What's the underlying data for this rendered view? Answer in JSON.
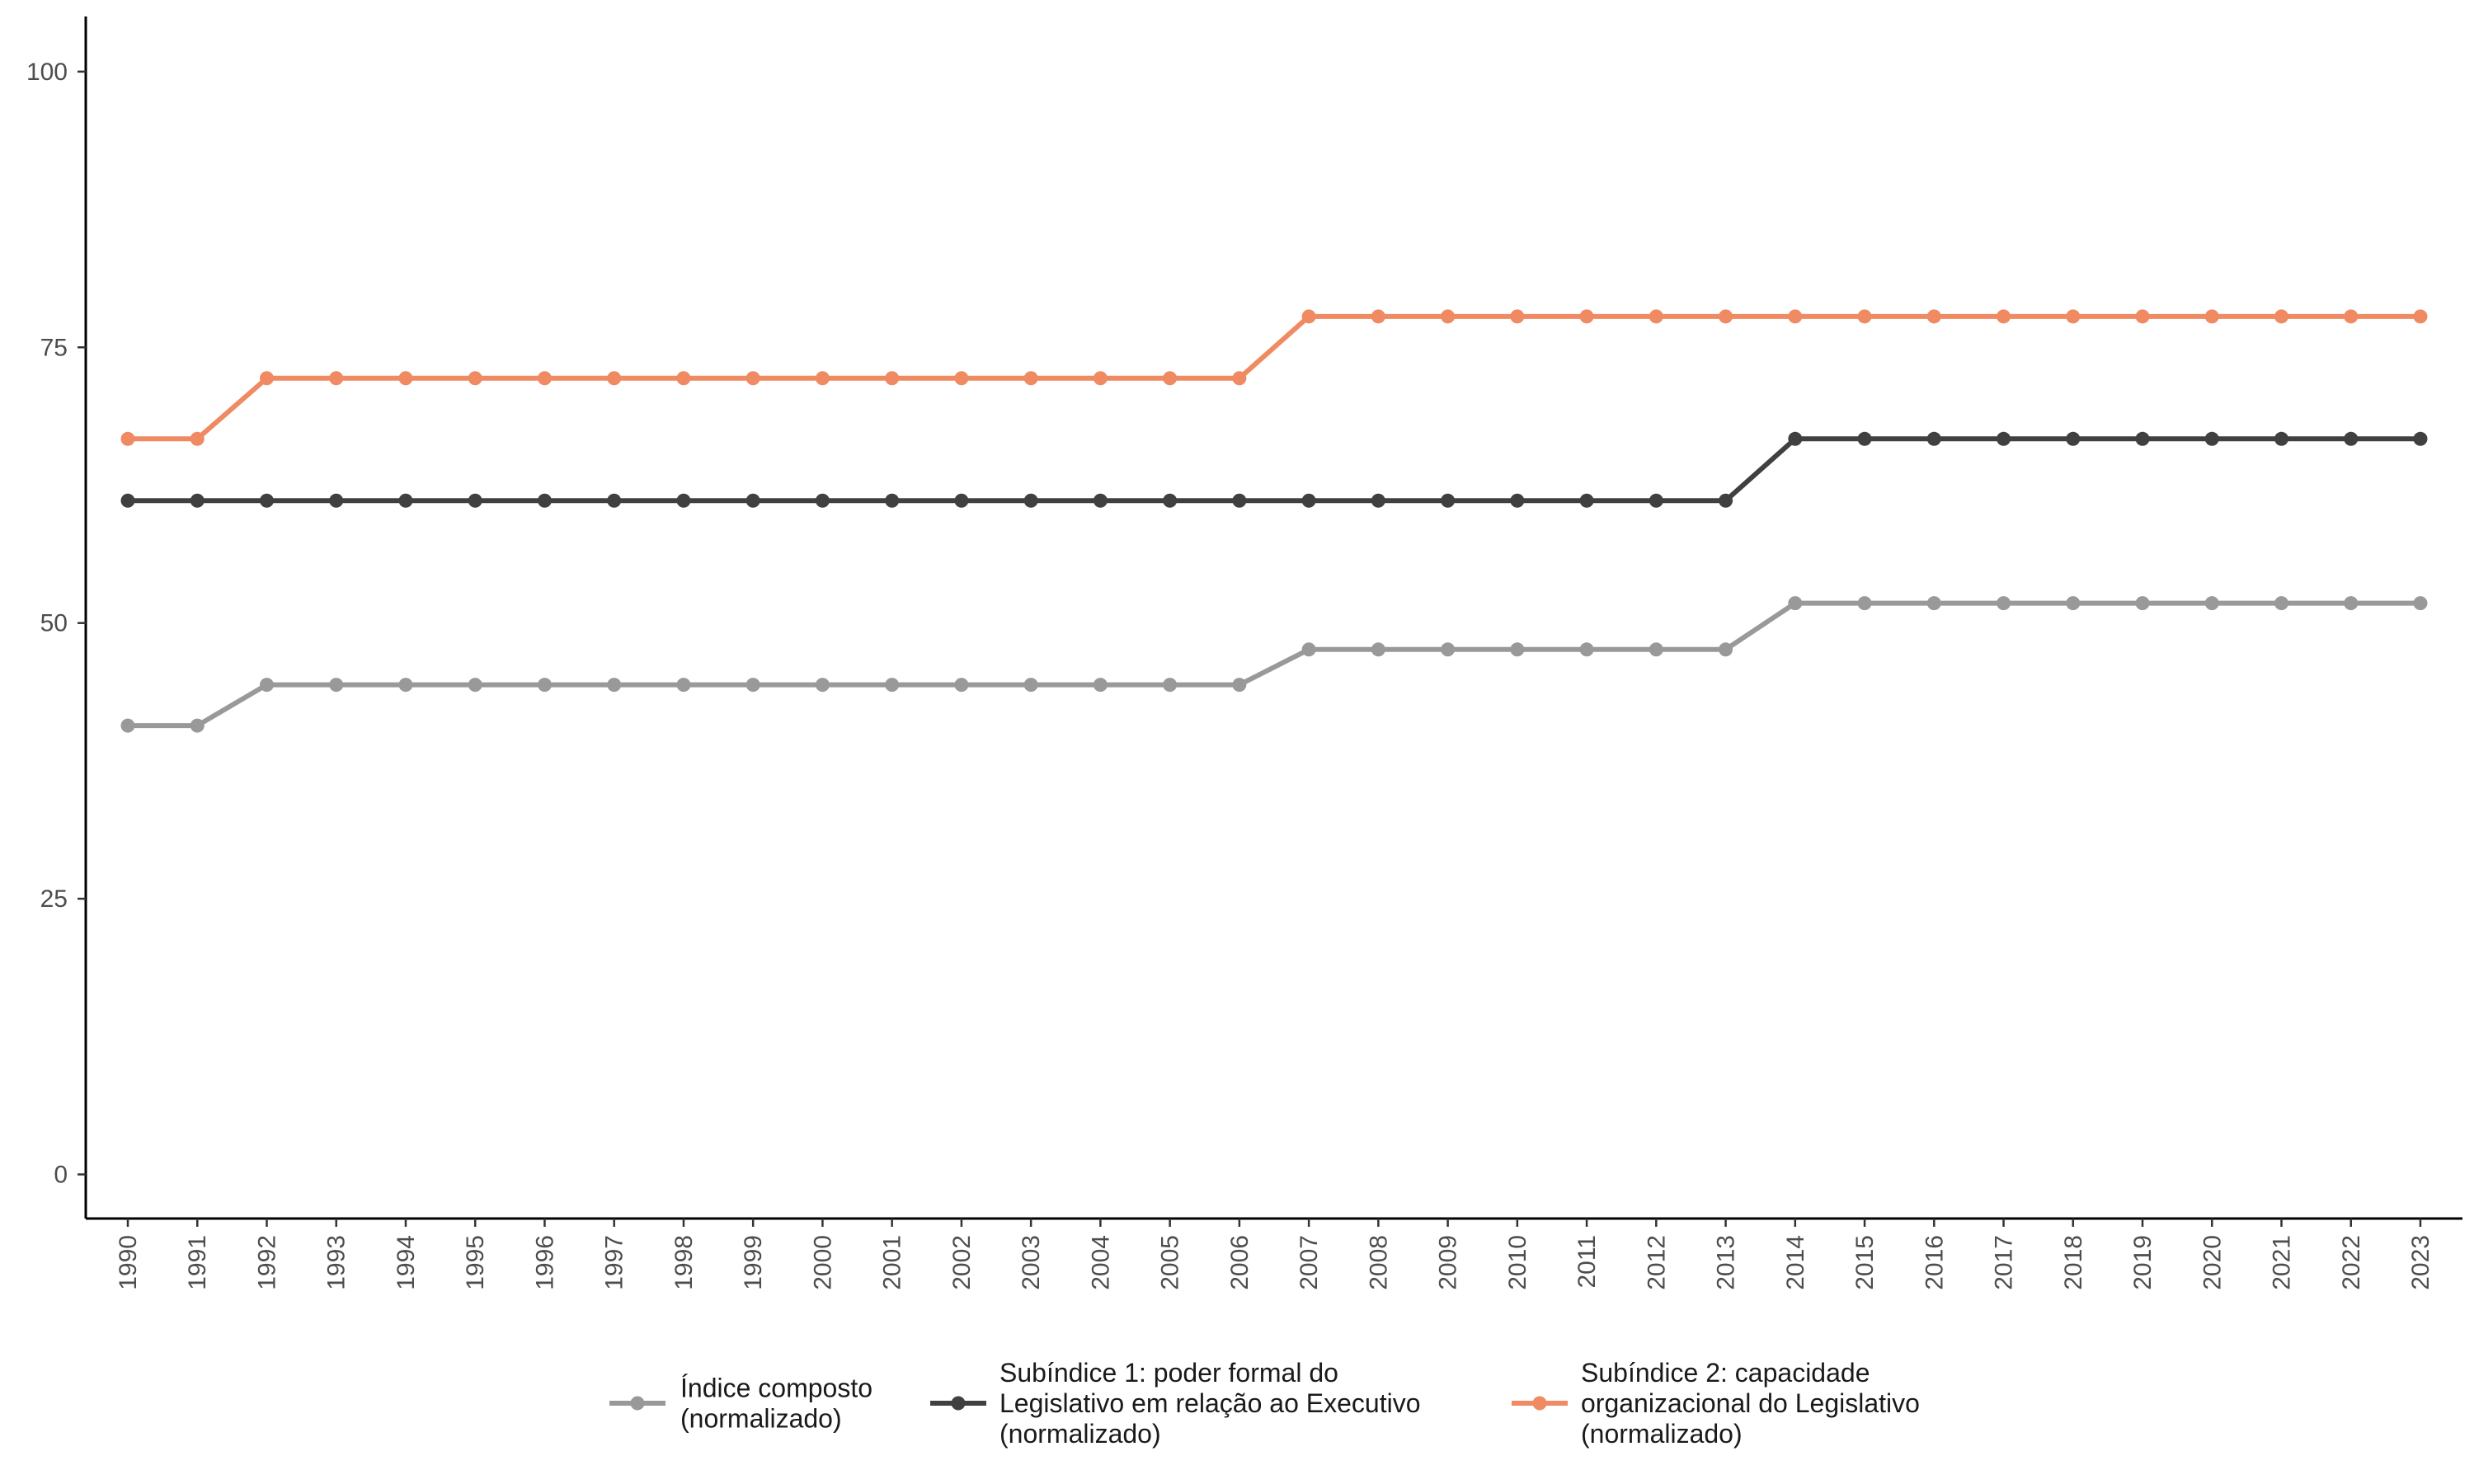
{
  "chart_data": {
    "type": "line",
    "title": "",
    "xlabel": "",
    "ylabel": "",
    "ylim": [
      -4,
      105
    ],
    "y_ticks": [
      0,
      25,
      50,
      75,
      100
    ],
    "grid": false,
    "legend_position": "bottom",
    "x": [
      "1990",
      "1991",
      "1992",
      "1993",
      "1994",
      "1995",
      "1996",
      "1997",
      "1998",
      "1999",
      "2000",
      "2001",
      "2002",
      "2003",
      "2004",
      "2005",
      "2006",
      "2007",
      "2008",
      "2009",
      "2010",
      "2011",
      "2012",
      "2013",
      "2014",
      "2015",
      "2016",
      "2017",
      "2018",
      "2019",
      "2020",
      "2021",
      "2022",
      "2023"
    ],
    "series": [
      {
        "name_lines": [
          "Índice composto",
          "(normalizado)"
        ],
        "color": "#999999",
        "values": [
          40.7,
          40.7,
          44.4,
          44.4,
          44.4,
          44.4,
          44.4,
          44.4,
          44.4,
          44.4,
          44.4,
          44.4,
          44.4,
          44.4,
          44.4,
          44.4,
          44.4,
          47.6,
          47.6,
          47.6,
          47.6,
          47.6,
          47.6,
          47.6,
          51.8,
          51.8,
          51.8,
          51.8,
          51.8,
          51.8,
          51.8,
          51.8,
          51.8,
          51.8
        ]
      },
      {
        "name_lines": [
          "Subíndice 1: poder formal do",
          "Legislativo em relação ao Executivo",
          "(normalizado)"
        ],
        "color": "#404040",
        "values": [
          61.1,
          61.1,
          61.1,
          61.1,
          61.1,
          61.1,
          61.1,
          61.1,
          61.1,
          61.1,
          61.1,
          61.1,
          61.1,
          61.1,
          61.1,
          61.1,
          61.1,
          61.1,
          61.1,
          61.1,
          61.1,
          61.1,
          61.1,
          61.1,
          66.7,
          66.7,
          66.7,
          66.7,
          66.7,
          66.7,
          66.7,
          66.7,
          66.7,
          66.7
        ]
      },
      {
        "name_lines": [
          "Subíndice 2: capacidade",
          "organizacional do Legislativo",
          "(normalizado)"
        ],
        "color": "#ef8a62",
        "values": [
          66.7,
          66.7,
          72.2,
          72.2,
          72.2,
          72.2,
          72.2,
          72.2,
          72.2,
          72.2,
          72.2,
          72.2,
          72.2,
          72.2,
          72.2,
          72.2,
          72.2,
          77.8,
          77.8,
          77.8,
          77.8,
          77.8,
          77.8,
          77.8,
          77.8,
          77.8,
          77.8,
          77.8,
          77.8,
          77.8,
          77.8,
          77.8,
          77.8,
          77.8
        ]
      }
    ]
  }
}
